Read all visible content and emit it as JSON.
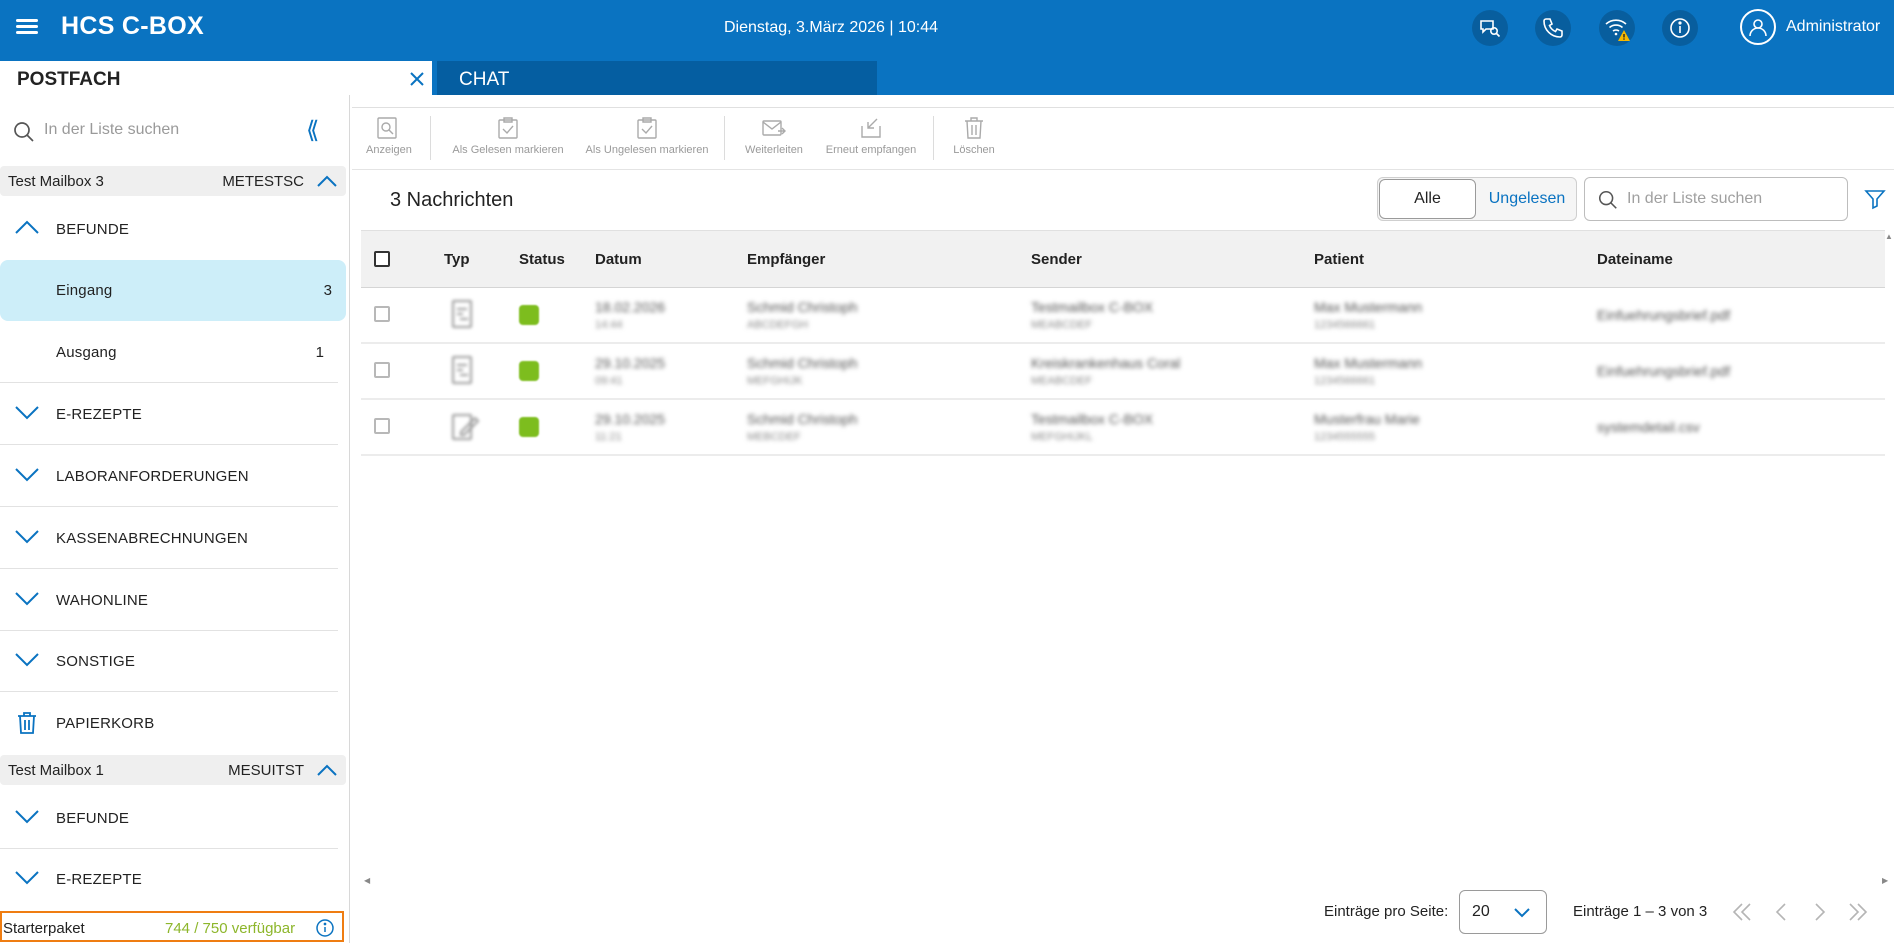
{
  "app": {
    "title": "HCS C-BOX",
    "datetime": "Dienstag, 3.März 2026 | 10:44",
    "user": "Administrator"
  },
  "tabs": [
    {
      "label": "POSTFACH"
    },
    {
      "label": "CHAT"
    }
  ],
  "sidebar": {
    "search_placeholder": "In der Liste suchen",
    "mailboxes": [
      {
        "name": "Test Mailbox 3",
        "code": "METESTSC",
        "items": [
          {
            "label": "BEFUNDE",
            "expanded": true
          },
          {
            "label": "Eingang",
            "count": "3",
            "selected": true
          },
          {
            "label": "Ausgang",
            "count": "1"
          },
          {
            "label": "E-REZEPTE"
          },
          {
            "label": "LABORANFORDERUNGEN"
          },
          {
            "label": "KASSENABRECHNUNGEN"
          },
          {
            "label": "WAHONLINE"
          },
          {
            "label": "SONSTIGE"
          },
          {
            "label": "PAPIERKORB"
          }
        ]
      },
      {
        "name": "Test Mailbox 1",
        "code": "MESUITST",
        "items": [
          {
            "label": "BEFUNDE"
          },
          {
            "label": "E-REZEPTE"
          }
        ]
      }
    ],
    "plan": {
      "label": "Starterpaket",
      "value": "744 / 750 verfügbar"
    }
  },
  "toolbar": {
    "show": "Anzeigen",
    "mark_read": "Als Gelesen markieren",
    "mark_unread": "Als Ungelesen markieren",
    "forward": "Weiterleiten",
    "receive_again": "Erneut empfangen",
    "delete": "Löschen"
  },
  "list": {
    "count_title": "3 Nachrichten",
    "filter_all": "Alle",
    "filter_unread": "Ungelesen",
    "search_placeholder": "In der Liste suchen",
    "columns": [
      "Typ",
      "Status",
      "Datum",
      "Empfänger",
      "Sender",
      "Patient",
      "Dateiname"
    ],
    "rows": [
      {
        "datum": "18.02.2026",
        "datum_sub": "14:44",
        "empfaenger": "Schmid Christoph",
        "empfaenger_sub": "ABCDEFGH",
        "sender": "Testmailbox C-BOX",
        "sender_sub": "MEABCDEF",
        "patient": "Max Mustermann",
        "patient_sub": "1234566661",
        "datei": "Einfuehrungsbrief.pdf"
      },
      {
        "datum": "29.10.2025",
        "datum_sub": "09:41",
        "empfaenger": "Schmid Christoph",
        "empfaenger_sub": "MEFGHIJK",
        "sender": "Kreiskrankenhaus Coral",
        "sender_sub": "MEABCDEF",
        "patient": "Max Mustermann",
        "patient_sub": "1234566661",
        "datei": "Einfuehrungsbrief.pdf"
      },
      {
        "datum": "29.10.2025",
        "datum_sub": "11:21",
        "empfaenger": "Schmid Christoph",
        "empfaenger_sub": "MEBCDEF",
        "sender": "Testmailbox C-BOX",
        "sender_sub": "MEFGHIJKL",
        "patient": "Musterfrau Marie",
        "patient_sub": "1234555555",
        "datei": "systemdetail.csv"
      }
    ]
  },
  "pager": {
    "label": "Einträge pro Seite:",
    "page_size": "20",
    "range": "Einträge 1 – 3 von 3"
  },
  "colors": {
    "brand": "#0a73c1",
    "selected": "#cdeef9",
    "status_ok": "#7dbd1e",
    "warning": "#f5b800",
    "plan_highlight": "#ef7d12"
  }
}
